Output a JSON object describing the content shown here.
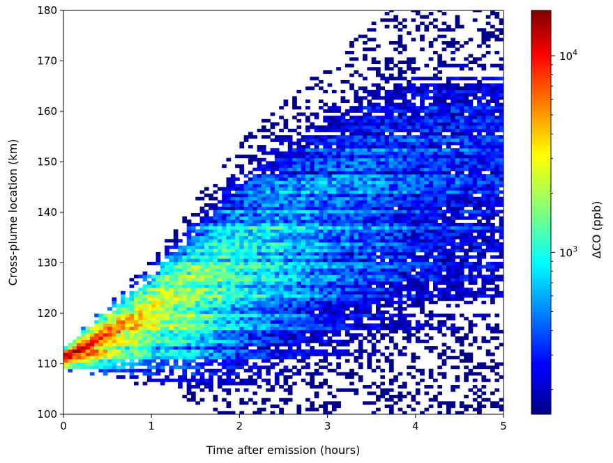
{
  "chart_data": {
    "type": "heatmap",
    "xlabel": "Time after emission (hours)",
    "ylabel": "Cross-plume location (km)",
    "xlim": [
      0,
      5
    ],
    "ylim": [
      100,
      180
    ],
    "x_ticks": [
      "0",
      "1",
      "2",
      "3",
      "4",
      "5"
    ],
    "y_ticks": [
      "100",
      "110",
      "120",
      "130",
      "140",
      "150",
      "160",
      "170",
      "180"
    ],
    "colorbar": {
      "label": "ΔCO (ppb)",
      "scale": "log",
      "range": [
        150,
        17000
      ],
      "major_ticks": [
        {
          "value": 1000,
          "label_base": "10",
          "label_exp": "3"
        },
        {
          "value": 10000,
          "label_base": "10",
          "label_exp": "4"
        }
      ],
      "minor_ticks": [
        200,
        300,
        400,
        500,
        600,
        700,
        800,
        900,
        2000,
        3000,
        4000,
        5000,
        6000,
        7000,
        8000,
        9000
      ],
      "colormap": "jet"
    },
    "plume": {
      "grid": {
        "x_bins": 100,
        "y_bins": 140
      },
      "source_y": 111,
      "core_growth_km_per_hour": 10,
      "core_peak_ppb": 16000,
      "centerline": [
        [
          0,
          111
        ],
        [
          1,
          121
        ],
        [
          1.5,
          125
        ],
        [
          2,
          131
        ],
        [
          3,
          140
        ],
        [
          4,
          146
        ],
        [
          5,
          152
        ]
      ],
      "upper_edge": [
        [
          0,
          113
        ],
        [
          1,
          129
        ],
        [
          2,
          150
        ],
        [
          3,
          165
        ],
        [
          4,
          178
        ],
        [
          4.5,
          182
        ],
        [
          5,
          184
        ]
      ],
      "lower_edge": [
        [
          0,
          109
        ],
        [
          1,
          108
        ],
        [
          2,
          104
        ],
        [
          3,
          102
        ],
        [
          4,
          101
        ],
        [
          5,
          100
        ]
      ],
      "peak_concentration": [
        [
          0,
          16000
        ],
        [
          0.5,
          9000
        ],
        [
          1,
          5000
        ],
        [
          1.5,
          3500
        ],
        [
          2,
          2200
        ],
        [
          3,
          1200
        ],
        [
          4,
          800
        ],
        [
          5,
          600
        ]
      ],
      "min_visible_ppb": 150
    }
  }
}
